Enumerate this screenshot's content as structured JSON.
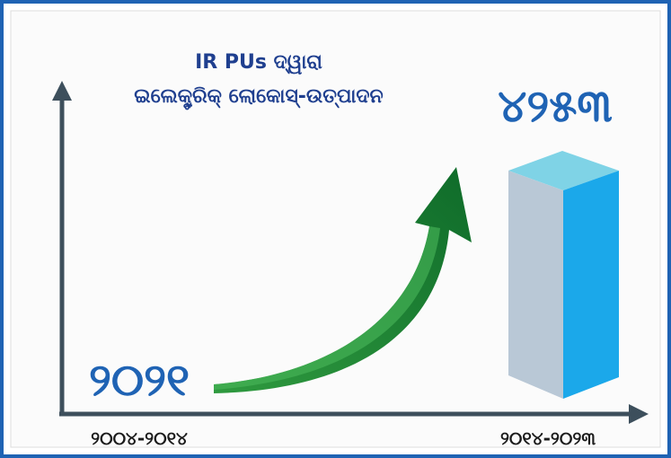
{
  "title_line1": "IR PUs ଦ୍ୱାରା",
  "title_line2": "ଇଲେକ୍ଟ୍ରିକ୍ ଲୋକୋସ୍-ଉତ୍ପାଦନ",
  "value_after": "୪୨୫୩",
  "value_before": "୨୦୨୧",
  "period_before": "୨୦୦୪-୨୦୧୪",
  "period_after": "୨୦୧୪-୨୦୨୩"
}
